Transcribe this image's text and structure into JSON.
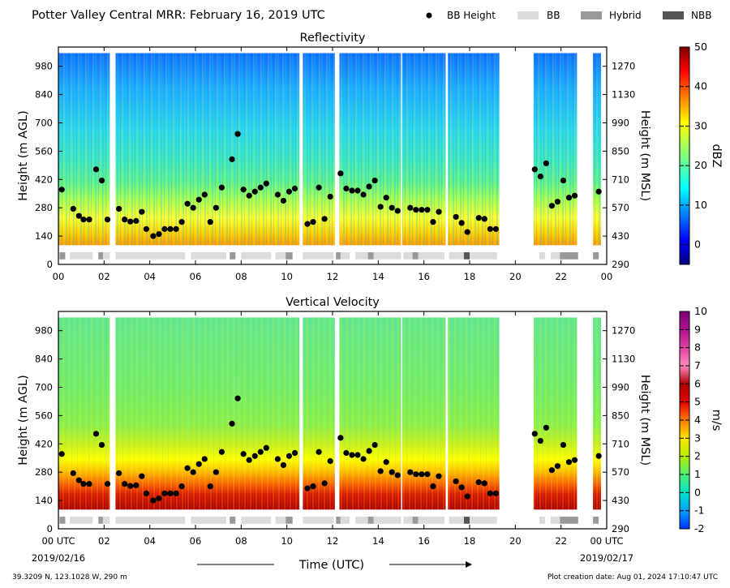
{
  "figure": {
    "title": "Potter Valley Central MRR:  February 16, 2019 UTC",
    "legend": [
      {
        "label": "BB Height",
        "kind": "marker",
        "color": "#000000"
      },
      {
        "label": "BB",
        "kind": "patch",
        "color": "#dcdcdc"
      },
      {
        "label": "Hybrid",
        "kind": "patch",
        "color": "#999999"
      },
      {
        "label": "NBB",
        "kind": "patch",
        "color": "#555555"
      }
    ],
    "xlabel": "Time (UTC)",
    "x_ticks": [
      "00",
      "02",
      "04",
      "06",
      "08",
      "10",
      "12",
      "14",
      "16",
      "18",
      "20",
      "22",
      "00"
    ],
    "bottom_x_ticks": [
      "00 UTC",
      "02",
      "04",
      "06",
      "08",
      "10",
      "12",
      "14",
      "16",
      "18",
      "20",
      "22",
      "00 UTC"
    ],
    "start_date": "2019/02/16",
    "end_date": "2019/02/17",
    "footer_left": "39.3209 N, 123.1028 W, 290 m",
    "footer_right": "Plot creation date: Aug 01, 2024 17:10:47 UTC",
    "colors": {
      "bb": "#dcdcdc",
      "hybrid": "#999999",
      "nbb": "#555555"
    }
  },
  "chart_data": [
    {
      "type": "heatmap",
      "title": "Reflectivity",
      "ylabel": "Height (m AGL)",
      "ylabel_right": "Height (m MSL)",
      "colorbar_label": "dBZ",
      "colorbar_ticks": [
        "50",
        "40",
        "30",
        "20",
        "10",
        "0"
      ],
      "colormap": "jet",
      "vmin": -5,
      "vmax": 50,
      "x_range_hours": [
        0,
        24
      ],
      "y_ticks_agl": [
        "980",
        "840",
        "700",
        "560",
        "420",
        "280",
        "140",
        "0"
      ],
      "y_ticks_msl": [
        "1270",
        "1130",
        "990",
        "850",
        "710",
        "570",
        "430",
        "290"
      ]
    },
    {
      "type": "heatmap",
      "title": "Vertical Velocity",
      "ylabel": "Height (m AGL)",
      "ylabel_right": "Height (m MSL)",
      "colorbar_label": "m/s",
      "colorbar_ticks": [
        "10",
        "9",
        "8",
        "7",
        "6",
        "5",
        "4",
        "3",
        "2",
        "1",
        "0",
        "-1",
        "-2"
      ],
      "colormap": "velocity",
      "vmin": -2,
      "vmax": 10,
      "x_range_hours": [
        0,
        24
      ],
      "y_ticks_agl": [
        "980",
        "840",
        "700",
        "560",
        "420",
        "280",
        "140",
        "0"
      ],
      "y_ticks_msl": [
        "1270",
        "1130",
        "990",
        "850",
        "710",
        "570",
        "430",
        "290"
      ]
    }
  ],
  "shared_data": {
    "echo_segments_hours": [
      [
        0.0,
        2.25
      ],
      [
        2.5,
        5.55
      ],
      [
        5.55,
        7.7
      ],
      [
        7.7,
        9.6
      ],
      [
        9.6,
        10.55
      ],
      [
        10.7,
        12.1
      ],
      [
        12.3,
        15.0
      ],
      [
        15.05,
        16.95
      ],
      [
        17.05,
        19.3
      ],
      [
        20.8,
        22.7
      ],
      [
        23.4,
        23.75
      ]
    ],
    "bb_height_points": [
      {
        "x": 0.15,
        "y": 370
      },
      {
        "x": 0.65,
        "y": 275
      },
      {
        "x": 0.9,
        "y": 240
      },
      {
        "x": 1.1,
        "y": 222
      },
      {
        "x": 1.35,
        "y": 222
      },
      {
        "x": 1.65,
        "y": 470
      },
      {
        "x": 1.9,
        "y": 415
      },
      {
        "x": 2.15,
        "y": 222
      },
      {
        "x": 2.65,
        "y": 275
      },
      {
        "x": 2.9,
        "y": 222
      },
      {
        "x": 3.15,
        "y": 212
      },
      {
        "x": 3.4,
        "y": 215
      },
      {
        "x": 3.65,
        "y": 260
      },
      {
        "x": 3.85,
        "y": 175
      },
      {
        "x": 4.15,
        "y": 140
      },
      {
        "x": 4.4,
        "y": 150
      },
      {
        "x": 4.65,
        "y": 175
      },
      {
        "x": 4.9,
        "y": 175
      },
      {
        "x": 5.15,
        "y": 175
      },
      {
        "x": 5.4,
        "y": 210
      },
      {
        "x": 5.65,
        "y": 300
      },
      {
        "x": 5.9,
        "y": 280
      },
      {
        "x": 6.15,
        "y": 320
      },
      {
        "x": 6.4,
        "y": 345
      },
      {
        "x": 6.65,
        "y": 210
      },
      {
        "x": 6.9,
        "y": 280
      },
      {
        "x": 7.15,
        "y": 380
      },
      {
        "x": 7.6,
        "y": 520
      },
      {
        "x": 7.85,
        "y": 645
      },
      {
        "x": 8.1,
        "y": 370
      },
      {
        "x": 8.35,
        "y": 340
      },
      {
        "x": 8.6,
        "y": 360
      },
      {
        "x": 8.85,
        "y": 380
      },
      {
        "x": 9.1,
        "y": 400
      },
      {
        "x": 9.6,
        "y": 345
      },
      {
        "x": 9.85,
        "y": 315
      },
      {
        "x": 10.1,
        "y": 360
      },
      {
        "x": 10.35,
        "y": 375
      },
      {
        "x": 10.9,
        "y": 200
      },
      {
        "x": 11.15,
        "y": 210
      },
      {
        "x": 11.4,
        "y": 380
      },
      {
        "x": 11.65,
        "y": 225
      },
      {
        "x": 11.9,
        "y": 335
      },
      {
        "x": 12.35,
        "y": 450
      },
      {
        "x": 12.6,
        "y": 375
      },
      {
        "x": 12.85,
        "y": 365
      },
      {
        "x": 13.1,
        "y": 365
      },
      {
        "x": 13.35,
        "y": 345
      },
      {
        "x": 13.6,
        "y": 385
      },
      {
        "x": 13.85,
        "y": 415
      },
      {
        "x": 14.1,
        "y": 285
      },
      {
        "x": 14.35,
        "y": 330
      },
      {
        "x": 14.6,
        "y": 280
      },
      {
        "x": 14.85,
        "y": 265
      },
      {
        "x": 15.4,
        "y": 280
      },
      {
        "x": 15.65,
        "y": 270
      },
      {
        "x": 15.9,
        "y": 270
      },
      {
        "x": 16.15,
        "y": 270
      },
      {
        "x": 16.4,
        "y": 210
      },
      {
        "x": 16.65,
        "y": 260
      },
      {
        "x": 17.4,
        "y": 235
      },
      {
        "x": 17.65,
        "y": 205
      },
      {
        "x": 17.9,
        "y": 160
      },
      {
        "x": 18.4,
        "y": 230
      },
      {
        "x": 18.65,
        "y": 225
      },
      {
        "x": 18.9,
        "y": 175
      },
      {
        "x": 19.15,
        "y": 175
      },
      {
        "x": 20.85,
        "y": 470
      },
      {
        "x": 21.1,
        "y": 435
      },
      {
        "x": 21.35,
        "y": 500
      },
      {
        "x": 21.6,
        "y": 290
      },
      {
        "x": 21.85,
        "y": 310
      },
      {
        "x": 22.1,
        "y": 415
      },
      {
        "x": 22.35,
        "y": 330
      },
      {
        "x": 22.6,
        "y": 340
      },
      {
        "x": 23.65,
        "y": 360
      }
    ],
    "bb_type_bar": [
      {
        "start": 0.05,
        "end": 0.3,
        "type": "hybrid"
      },
      {
        "start": 0.5,
        "end": 1.5,
        "type": "bb"
      },
      {
        "start": 1.75,
        "end": 1.95,
        "type": "hybrid"
      },
      {
        "start": 1.95,
        "end": 2.25,
        "type": "bb"
      },
      {
        "start": 2.5,
        "end": 5.55,
        "type": "bb"
      },
      {
        "start": 5.8,
        "end": 7.35,
        "type": "bb"
      },
      {
        "start": 7.5,
        "end": 7.75,
        "type": "hybrid"
      },
      {
        "start": 8.0,
        "end": 9.3,
        "type": "bb"
      },
      {
        "start": 9.5,
        "end": 9.95,
        "type": "bb"
      },
      {
        "start": 9.95,
        "end": 10.25,
        "type": "hybrid"
      },
      {
        "start": 10.7,
        "end": 12.05,
        "type": "bb"
      },
      {
        "start": 12.15,
        "end": 12.35,
        "type": "hybrid"
      },
      {
        "start": 12.35,
        "end": 12.75,
        "type": "bb"
      },
      {
        "start": 13.0,
        "end": 13.55,
        "type": "bb"
      },
      {
        "start": 13.55,
        "end": 13.8,
        "type": "hybrid"
      },
      {
        "start": 13.8,
        "end": 15.0,
        "type": "bb"
      },
      {
        "start": 15.1,
        "end": 15.5,
        "type": "bb"
      },
      {
        "start": 15.5,
        "end": 15.75,
        "type": "hybrid"
      },
      {
        "start": 15.75,
        "end": 16.9,
        "type": "bb"
      },
      {
        "start": 17.1,
        "end": 17.75,
        "type": "bb"
      },
      {
        "start": 17.75,
        "end": 18.0,
        "type": "nbb"
      },
      {
        "start": 18.0,
        "end": 19.2,
        "type": "bb"
      },
      {
        "start": 21.05,
        "end": 21.3,
        "type": "bb"
      },
      {
        "start": 21.55,
        "end": 21.95,
        "type": "bb"
      },
      {
        "start": 21.95,
        "end": 22.75,
        "type": "hybrid"
      },
      {
        "start": 23.4,
        "end": 23.65,
        "type": "hybrid"
      }
    ]
  }
}
